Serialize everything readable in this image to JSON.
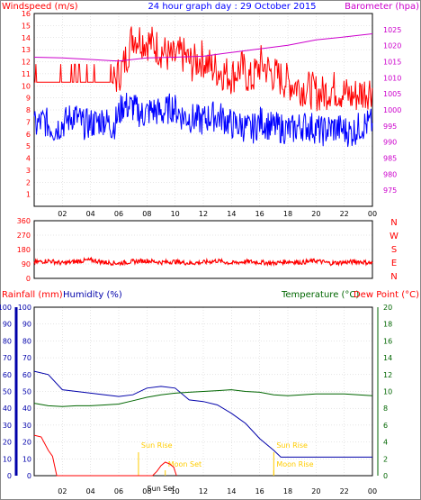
{
  "title": "24 hour graph day : 29 October 2015",
  "colors": {
    "wind": "#ff0000",
    "gust": "#0000ff",
    "baro": "#cc00cc",
    "dir": "#ff0000",
    "rain": "#ff0000",
    "humidity": "#0000aa",
    "temp": "#006600",
    "dew": "#ff0000",
    "sun": "#ffcc00",
    "grid": "#000000"
  },
  "chart_data": [
    {
      "type": "line",
      "name": "wind-baro",
      "title": "24 hour graph day : 29 October 2015",
      "ylabel_left": "Windspeed (m/s)",
      "ylabel_right": "Barometer (hpa)",
      "ylim_left": [
        0,
        16
      ],
      "ylim_right": [
        970,
        1030
      ],
      "yticks_left": [
        "1",
        "2",
        "3",
        "4",
        "5",
        "6",
        "7",
        "8",
        "9",
        "10",
        "11",
        "12",
        "13",
        "14",
        "15",
        "16"
      ],
      "yticks_right": [
        "975",
        "980",
        "985",
        "990",
        "995",
        "1000",
        "1005",
        "1010",
        "1015",
        "1020",
        "1025"
      ],
      "xticks": [
        "02",
        "04",
        "06",
        "08",
        "10",
        "12",
        "14",
        "16",
        "18",
        "20",
        "22",
        "00"
      ],
      "grid": true,
      "series": [
        {
          "kind": "windspeed",
          "x": [
            0,
            0.7,
            1.4,
            2.1,
            2.8,
            3.5,
            4.2,
            4.9,
            5.6,
            6.3,
            7.0,
            7.7,
            8.4,
            9.1,
            9.8,
            10.5,
            11.2,
            11.9,
            12.6,
            13.3,
            14.0,
            14.7,
            15.4,
            16.1,
            16.8,
            17.5,
            18.2,
            19.0,
            19.7,
            20.4,
            21.1,
            21.8,
            22.5,
            23.2,
            24.0
          ],
          "values": [
            10.3,
            10.3,
            10.3,
            10.3,
            10.3,
            10.3,
            10.3,
            10.3,
            10.3,
            11.5,
            14.2,
            13.8,
            13.5,
            12.9,
            12.2,
            12.6,
            11.8,
            12.3,
            11.5,
            11.2,
            10.8,
            11.5,
            10.4,
            11.9,
            11.1,
            10.6,
            10.2,
            9.9,
            9.6,
            9.3,
            9.8,
            9.5,
            9.1,
            9.4,
            9.8
          ]
        },
        {
          "kind": "gust",
          "x": [
            0,
            0.7,
            1.4,
            2.1,
            2.8,
            3.5,
            4.2,
            4.9,
            5.6,
            6.3,
            7.0,
            7.7,
            8.4,
            9.1,
            9.8,
            10.5,
            11.2,
            11.9,
            12.6,
            13.3,
            14.0,
            14.7,
            15.4,
            16.1,
            16.8,
            17.5,
            18.2,
            19.0,
            19.7,
            20.4,
            21.1,
            21.8,
            22.5,
            23.2,
            24.0
          ],
          "values": [
            6.6,
            7.1,
            6.4,
            6.9,
            7.6,
            6.8,
            6.9,
            7.2,
            6.6,
            8.4,
            8.2,
            7.6,
            8.0,
            7.7,
            8.3,
            7.5,
            7.3,
            7.1,
            7.5,
            7.4,
            6.8,
            6.7,
            6.3,
            7.1,
            6.6,
            6.5,
            6.3,
            6.7,
            6.6,
            6.2,
            6.5,
            6.4,
            6.1,
            6.7,
            6.9
          ]
        },
        {
          "kind": "barometer",
          "x": [
            0,
            2,
            4,
            6,
            8,
            10,
            12,
            14,
            16,
            18,
            20,
            22,
            24
          ],
          "values": [
            1016.4,
            1016.2,
            1015.7,
            1015.2,
            1016.2,
            1016.4,
            1016.7,
            1017.9,
            1019.0,
            1020.1,
            1021.8,
            1022.7,
            1023.7
          ]
        }
      ]
    },
    {
      "type": "scatter",
      "name": "wind-direction",
      "ylabel_right": "NWSEN",
      "ylim": [
        0,
        360
      ],
      "yticks": [
        "360",
        "270",
        "180",
        "90",
        "0"
      ],
      "series": [
        {
          "kind": "direction",
          "x": [
            0,
            1,
            2,
            3,
            4,
            5,
            6,
            7,
            8,
            9,
            10,
            11,
            12,
            13,
            14,
            15,
            16,
            17,
            18,
            19,
            20,
            21,
            22,
            23,
            24
          ],
          "values": [
            100,
            110,
            95,
            105,
            115,
            100,
            95,
            105,
            110,
            100,
            105,
            95,
            100,
            110,
            95,
            105,
            100,
            95,
            105,
            100,
            110,
            95,
            100,
            105,
            95
          ]
        }
      ]
    },
    {
      "type": "line",
      "name": "rain-humidity-temp",
      "ylabel_left": "Rainfall (mm)",
      "ylabel_left2": "Humidity (%)",
      "ylabel_right": "Temperature (°C)",
      "ylabel_right2": "Dew Point (°C)",
      "ylim_left": [
        0,
        100
      ],
      "ylim_right": [
        0,
        20
      ],
      "yticks_left": [
        "0",
        "10",
        "20",
        "30",
        "40",
        "50",
        "60",
        "70",
        "80",
        "90",
        "100"
      ],
      "yticks_right": [
        "0",
        "2",
        "4",
        "6",
        "8",
        "10",
        "12",
        "14",
        "16",
        "18",
        "20"
      ],
      "xticks": [
        "02",
        "04",
        "06",
        "08",
        "10",
        "12",
        "14",
        "16",
        "18",
        "20",
        "22",
        "00"
      ],
      "annotations": [
        "Sun Rise",
        "Moon Set",
        "Sun Set",
        "Sun Rise",
        "Moon Rise"
      ],
      "series": [
        {
          "kind": "humidity",
          "x": [
            0,
            1,
            2,
            3,
            4,
            5,
            6,
            7,
            8,
            9,
            10,
            11,
            12,
            13,
            14,
            15,
            16,
            17,
            17.5,
            18,
            19,
            20,
            21,
            22,
            23,
            24
          ],
          "values": [
            62,
            60,
            51,
            50,
            49,
            48,
            47,
            48,
            52,
            53,
            52,
            45,
            44,
            42,
            37,
            31,
            22,
            15,
            11,
            11,
            11,
            11,
            11,
            11,
            11,
            11
          ]
        },
        {
          "kind": "temperature",
          "x": [
            0,
            1,
            2,
            3,
            4,
            5,
            6,
            7,
            8,
            9,
            10,
            11,
            12,
            13,
            14,
            15,
            16,
            17,
            18,
            19,
            20,
            21,
            22,
            23,
            24
          ],
          "values": [
            8.6,
            8.3,
            8.2,
            8.3,
            8.3,
            8.4,
            8.5,
            8.9,
            9.3,
            9.6,
            9.8,
            9.9,
            10.0,
            10.1,
            10.2,
            10.0,
            9.9,
            9.6,
            9.5,
            9.6,
            9.7,
            9.7,
            9.7,
            9.6,
            9.5
          ]
        },
        {
          "kind": "rainfall",
          "x": [
            0,
            0.5,
            1,
            1.3,
            1.6,
            8.4,
            8.7,
            9.0,
            9.3,
            9.6,
            9.9,
            10.1
          ],
          "values": [
            4.8,
            4.6,
            3.0,
            2.3,
            0.0,
            0.0,
            0.5,
            1.2,
            1.6,
            1.4,
            1.0,
            0.0
          ]
        }
      ]
    }
  ]
}
